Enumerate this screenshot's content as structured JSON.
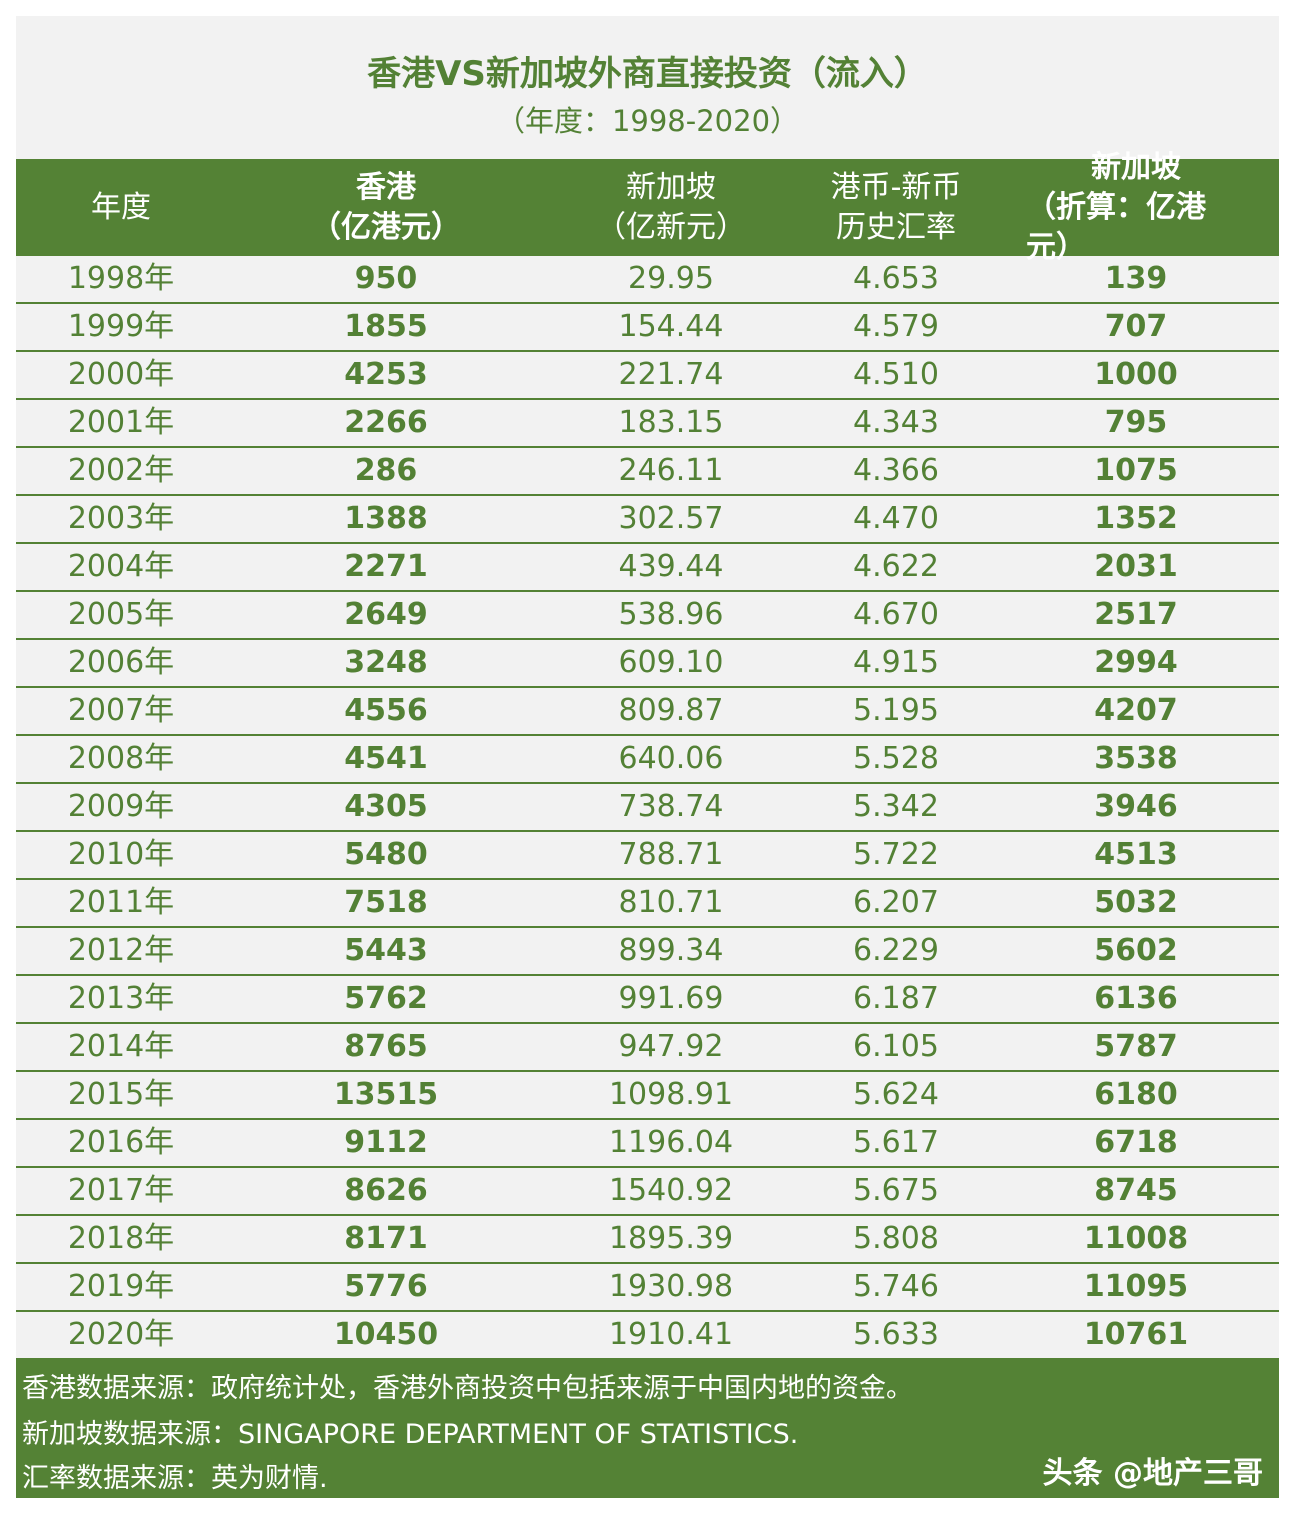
{
  "title": "香港VS新加坡外商直接投资（流入）",
  "subtitle": "（年度：1998-2020）",
  "header": {
    "col0": "年度",
    "col1_line1": "香港",
    "col1_line2": "（亿港元）",
    "col2_line1": "新加坡",
    "col2_line2": "（亿新元）",
    "col3_line1": "港币-新币",
    "col3_line2": "历史汇率",
    "col4_line1": "新加坡",
    "col4_line2": "（折算：亿港元）"
  },
  "rows": [
    {
      "year": "1998年",
      "hk": "950",
      "sg": "29.95",
      "rate": "4.653",
      "sg_hkd": "139"
    },
    {
      "year": "1999年",
      "hk": "1855",
      "sg": "154.44",
      "rate": "4.579",
      "sg_hkd": "707"
    },
    {
      "year": "2000年",
      "hk": "4253",
      "sg": "221.74",
      "rate": "4.510",
      "sg_hkd": "1000"
    },
    {
      "year": "2001年",
      "hk": "2266",
      "sg": "183.15",
      "rate": "4.343",
      "sg_hkd": "795"
    },
    {
      "year": "2002年",
      "hk": "286",
      "sg": "246.11",
      "rate": "4.366",
      "sg_hkd": "1075"
    },
    {
      "year": "2003年",
      "hk": "1388",
      "sg": "302.57",
      "rate": "4.470",
      "sg_hkd": "1352"
    },
    {
      "year": "2004年",
      "hk": "2271",
      "sg": "439.44",
      "rate": "4.622",
      "sg_hkd": "2031"
    },
    {
      "year": "2005年",
      "hk": "2649",
      "sg": "538.96",
      "rate": "4.670",
      "sg_hkd": "2517"
    },
    {
      "year": "2006年",
      "hk": "3248",
      "sg": "609.10",
      "rate": "4.915",
      "sg_hkd": "2994"
    },
    {
      "year": "2007年",
      "hk": "4556",
      "sg": "809.87",
      "rate": "5.195",
      "sg_hkd": "4207"
    },
    {
      "year": "2008年",
      "hk": "4541",
      "sg": "640.06",
      "rate": "5.528",
      "sg_hkd": "3538"
    },
    {
      "year": "2009年",
      "hk": "4305",
      "sg": "738.74",
      "rate": "5.342",
      "sg_hkd": "3946"
    },
    {
      "year": "2010年",
      "hk": "5480",
      "sg": "788.71",
      "rate": "5.722",
      "sg_hkd": "4513"
    },
    {
      "year": "2011年",
      "hk": "7518",
      "sg": "810.71",
      "rate": "6.207",
      "sg_hkd": "5032"
    },
    {
      "year": "2012年",
      "hk": "5443",
      "sg": "899.34",
      "rate": "6.229",
      "sg_hkd": "5602"
    },
    {
      "year": "2013年",
      "hk": "5762",
      "sg": "991.69",
      "rate": "6.187",
      "sg_hkd": "6136"
    },
    {
      "year": "2014年",
      "hk": "8765",
      "sg": "947.92",
      "rate": "6.105",
      "sg_hkd": "5787"
    },
    {
      "year": "2015年",
      "hk": "13515",
      "sg": "1098.91",
      "rate": "5.624",
      "sg_hkd": "6180"
    },
    {
      "year": "2016年",
      "hk": "9112",
      "sg": "1196.04",
      "rate": "5.617",
      "sg_hkd": "6718"
    },
    {
      "year": "2017年",
      "hk": "8626",
      "sg": "1540.92",
      "rate": "5.675",
      "sg_hkd": "8745"
    },
    {
      "year": "2018年",
      "hk": "8171",
      "sg": "1895.39",
      "rate": "5.808",
      "sg_hkd": "11008"
    },
    {
      "year": "2019年",
      "hk": "5776",
      "sg": "1930.98",
      "rate": "5.746",
      "sg_hkd": "11095"
    },
    {
      "year": "2020年",
      "hk": "10450",
      "sg": "1910.41",
      "rate": "5.633",
      "sg_hkd": "10761"
    }
  ],
  "footer": {
    "line1": "香港数据来源：政府统计处，香港外商投资中包括来源于中国内地的资金。",
    "line2": "新加坡数据来源：SINGAPORE DEPARTMENT OF STATISTICS.",
    "line3": "汇率数据来源：英为财情.",
    "watermark": "头条 @地产三哥"
  },
  "colors": {
    "accent_green": "#548235",
    "text_green": "#538135",
    "background": "#f2f2f2"
  },
  "chart_data": {
    "type": "table",
    "title": "香港VS新加坡外商直接投资（流入）",
    "subtitle": "（年度：1998-2020）",
    "columns": [
      "年度",
      "香港（亿港元）",
      "新加坡（亿新元）",
      "港币-新币历史汇率",
      "新加坡（折算：亿港元）"
    ],
    "x": [
      "1998年",
      "1999年",
      "2000年",
      "2001年",
      "2002年",
      "2003年",
      "2004年",
      "2005年",
      "2006年",
      "2007年",
      "2008年",
      "2009年",
      "2010年",
      "2011年",
      "2012年",
      "2013年",
      "2014年",
      "2015年",
      "2016年",
      "2017年",
      "2018年",
      "2019年",
      "2020年"
    ],
    "series": [
      {
        "name": "香港（亿港元）",
        "values": [
          950,
          1855,
          4253,
          2266,
          286,
          1388,
          2271,
          2649,
          3248,
          4556,
          4541,
          4305,
          5480,
          7518,
          5443,
          5762,
          8765,
          13515,
          9112,
          8626,
          8171,
          5776,
          10450
        ]
      },
      {
        "name": "新加坡（亿新元）",
        "values": [
          29.95,
          154.44,
          221.74,
          183.15,
          246.11,
          302.57,
          439.44,
          538.96,
          609.1,
          809.87,
          640.06,
          738.74,
          788.71,
          810.71,
          899.34,
          991.69,
          947.92,
          1098.91,
          1196.04,
          1540.92,
          1895.39,
          1930.98,
          1910.41
        ]
      },
      {
        "name": "港币-新币历史汇率",
        "values": [
          4.653,
          4.579,
          4.51,
          4.343,
          4.366,
          4.47,
          4.622,
          4.67,
          4.915,
          5.195,
          5.528,
          5.342,
          5.722,
          6.207,
          6.229,
          6.187,
          6.105,
          5.624,
          5.617,
          5.675,
          5.808,
          5.746,
          5.633
        ]
      },
      {
        "name": "新加坡（折算：亿港元）",
        "values": [
          139,
          707,
          1000,
          795,
          1075,
          1352,
          2031,
          2517,
          2994,
          4207,
          3538,
          3946,
          4513,
          5032,
          5602,
          6136,
          5787,
          6180,
          6718,
          8745,
          11008,
          11095,
          10761
        ]
      }
    ]
  }
}
